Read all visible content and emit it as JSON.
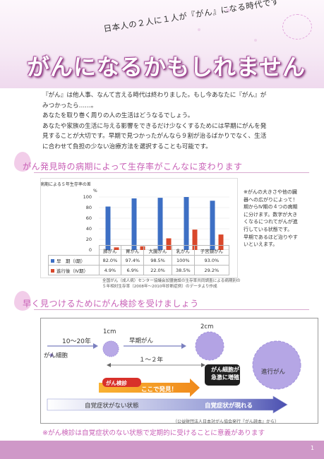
{
  "header": {
    "subtitle": "日本人の２人に１人が『がん』になる時代です",
    "title": "がんになるかもしれません"
  },
  "intro": [
    "『がん』は他人事、なんて言える時代は終わりました。もし今あなたに『がん』が",
    "みつかったら……。",
    "あなたを取り巻く周りの人の生活はどうなるでしょう。",
    "あなたや家族の生活に与える影響をできるだけ少なくするためには早期にがんを発",
    "見することが大切です。早期で見つかったがんなら９割が治るばかりでなく、生活",
    "に合わせて負担の少ない治療方法を選択することも可能です。"
  ],
  "section1": {
    "heading": "がん発見時の病期によって生存率がこんなに変わります"
  },
  "chart_data": {
    "type": "bar",
    "title": "病期による５年生存率の差",
    "ylabel": "%",
    "ylim": [
      0,
      100
    ],
    "yticks": [
      "100",
      "80",
      "60",
      "40",
      "20",
      "0"
    ],
    "categories": [
      "肺がん",
      "胃がん",
      "大腸がん",
      "乳がん",
      "子宮頸がん"
    ],
    "series": [
      {
        "name": "早　期（Ⅰ期）",
        "color": "#3d6fc4",
        "values": [
          82.0,
          97.4,
          98.5,
          100,
          93.0
        ],
        "labels": [
          "82.0%",
          "97.4%",
          "98.5%",
          "100%",
          "93.0%"
        ]
      },
      {
        "name": "進行後（Ⅳ期）",
        "color": "#d9482b",
        "values": [
          4.9,
          6.9,
          22.0,
          38.5,
          29.2
        ],
        "labels": [
          "4.9%",
          "6.9%",
          "22.0%",
          "38.5%",
          "29.2%"
        ]
      }
    ],
    "legend": "table-below",
    "grid": true
  },
  "chart_source": [
    "全国がん（成人病）センター協議会加盟施設の生存率共同調査による病期別の",
    "５年相対生存率（2008年～2010年診断症例）のデータより作成"
  ],
  "side_note": [
    "※がんの大きさや他の臓",
    "器への広がりによって！",
    "期からⅣ期の４つの病期",
    "に分けます。数字が大き",
    "くなるにつれてがんが進",
    "行している状態です。",
    "早期であるほど治りやす",
    "いといえます。"
  ],
  "section2": {
    "heading": "早く見つけるためにがん検診を受けましょう"
  },
  "diagram": {
    "years_label": "10～20年",
    "size1": "1cm",
    "size2": "2cm",
    "cell_label": "がん細胞",
    "early_label": "早期がん",
    "interval_label": "１～２年",
    "screening_label": "がん検診",
    "found_label": "ここで発見！",
    "rapid_line1": "がん細胞が",
    "rapid_line2": "急激に増殖",
    "advanced_label": "進行がん",
    "no_symptom": "自覚症状がない状態",
    "symptom": "自覚症状が現れる",
    "source": "（公益財団法人日本対がん協会発行『がん読本』から）"
  },
  "footer": {
    "note": "※がん検診は自覚症状のない状態で定期的に受けることに意義があります",
    "page": "1"
  },
  "colors": {
    "accent": "#c85fb6",
    "footer": "#cf98c8",
    "early": "#3d6fc4",
    "late": "#d9482b"
  }
}
